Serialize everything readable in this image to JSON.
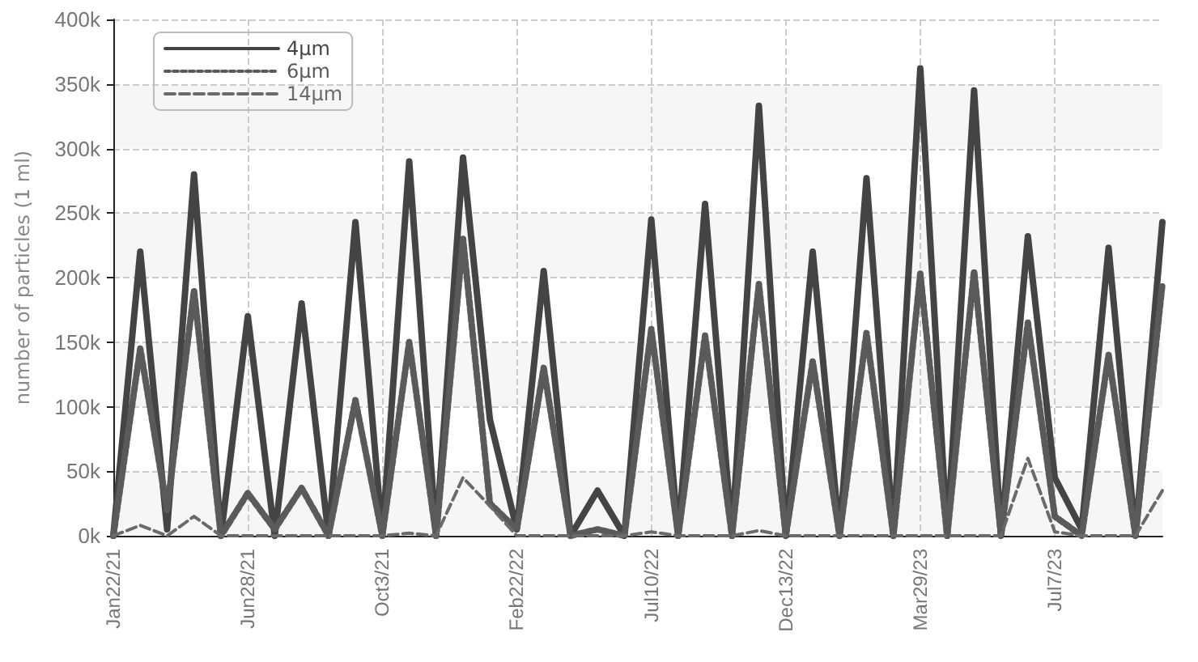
{
  "chart_data": {
    "type": "line",
    "ylabel": "number of particles (1 ml)",
    "categories": [
      "Jan22/21",
      null,
      null,
      null,
      null,
      "Jun28/21",
      null,
      null,
      null,
      null,
      "Oct3/21",
      null,
      null,
      null,
      null,
      "Feb22/22",
      null,
      null,
      null,
      null,
      "Jul10/22",
      null,
      null,
      null,
      null,
      "Dec13/22",
      null,
      null,
      null,
      null,
      "Mar29/23",
      null,
      null,
      null,
      null,
      "Jul7/23",
      null,
      null,
      null,
      null
    ],
    "series": [
      {
        "name": "4μm",
        "color": "#444444",
        "line_style": "solid",
        "values": [
          0,
          220000,
          5000,
          280000,
          0,
          170000,
          0,
          180000,
          0,
          243000,
          0,
          290000,
          0,
          293000,
          90000,
          5000,
          205000,
          0,
          35000,
          0,
          245000,
          0,
          257000,
          0,
          333000,
          0,
          220000,
          0,
          277000,
          0,
          362000,
          0,
          345000,
          0,
          232000,
          45000,
          5000,
          223000,
          0,
          243000
        ]
      },
      {
        "name": "6μm",
        "color": "#5a5a5a",
        "line_style": "dotted",
        "values": [
          0,
          145000,
          20000,
          190000,
          0,
          33000,
          5000,
          37000,
          0,
          105000,
          0,
          150000,
          0,
          230000,
          25000,
          5000,
          130000,
          0,
          5000,
          0,
          160000,
          0,
          155000,
          0,
          195000,
          0,
          135000,
          0,
          157000,
          0,
          203000,
          0,
          205000,
          0,
          165000,
          15000,
          0,
          140000,
          0,
          195000
        ]
      },
      {
        "name": "14μm",
        "color": "#6a6a6a",
        "line_style": "dashed",
        "values": [
          0,
          8000,
          0,
          15000,
          0,
          0,
          0,
          0,
          0,
          0,
          0,
          2000,
          0,
          45000,
          23000,
          0,
          0,
          0,
          0,
          0,
          3000,
          0,
          0,
          0,
          4000,
          0,
          0,
          0,
          0,
          0,
          0,
          0,
          0,
          0,
          60000,
          3000,
          0,
          0,
          0,
          35000
        ]
      }
    ],
    "ylim": [
      0,
      400000
    ],
    "yticks": [
      {
        "value": 0,
        "label": "0k"
      },
      {
        "value": 50000,
        "label": "50k"
      },
      {
        "value": 100000,
        "label": "100k"
      },
      {
        "value": 150000,
        "label": "150k"
      },
      {
        "value": 200000,
        "label": "200k"
      },
      {
        "value": 250000,
        "label": "250k"
      },
      {
        "value": 300000,
        "label": "300k"
      },
      {
        "value": 350000,
        "label": "350k"
      },
      {
        "value": 400000,
        "label": "400k"
      }
    ],
    "grid": true,
    "legend": "top left",
    "marker": "none"
  }
}
